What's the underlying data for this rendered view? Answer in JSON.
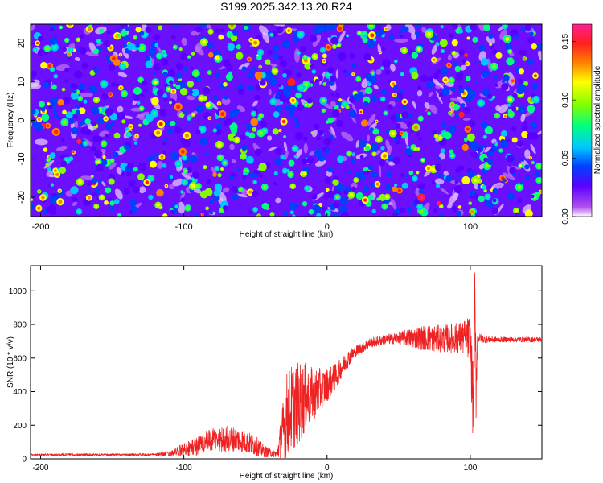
{
  "figure_title": "S199.2025.342.13.20.R24",
  "chart_data": [
    {
      "type": "heatmap",
      "title": "S199.2025.342.13.20.R24",
      "xlabel": "Height of straight line (km)",
      "ylabel": "Frequency (Hz)",
      "xlim": [
        -207,
        150
      ],
      "ylim": [
        -25,
        25
      ],
      "x_ticks": [
        -200,
        -100,
        0,
        100
      ],
      "x_tick_labels": [
        "-200",
        "-100",
        "0",
        "100"
      ],
      "y_ticks": [
        -20,
        -10,
        0,
        10,
        20
      ],
      "y_tick_labels": [
        "-20",
        "-10",
        "0",
        "10",
        "20"
      ],
      "value_range": [
        0,
        0.165
      ],
      "colorbar": {
        "label": "Normalized spectral amplitude",
        "ticks": [
          0,
          0.05,
          0.1,
          0.15
        ],
        "tick_labels": [
          "0.00",
          "0.05",
          "0.10",
          "0.15"
        ],
        "colors": [
          "#ffffff",
          "#b050f0",
          "#5a00ff",
          "#0040ff",
          "#00c8ff",
          "#00ff80",
          "#80ff00",
          "#ffff00",
          "#ff8000",
          "#ff2020",
          "#ff2090"
        ]
      },
      "description_of_values": "Speckled field of mostly low amplitude (0.02–0.06) with scattered peaks up to ~0.15"
    },
    {
      "type": "line",
      "xlabel": "Height of straight line (km)",
      "ylabel": "SNR (10 * v/v)",
      "xlim": [
        -207,
        150
      ],
      "ylim": [
        0,
        1150
      ],
      "x_ticks": [
        -200,
        -100,
        0,
        100
      ],
      "x_tick_labels": [
        "-200",
        "-100",
        "0",
        "100"
      ],
      "y_ticks": [
        0,
        200,
        400,
        600,
        800,
        1000
      ],
      "y_tick_labels": [
        "0",
        "200",
        "400",
        "600",
        "800",
        "1000"
      ],
      "series": [
        {
          "name": "SNR",
          "color": "#ee2222",
          "x": [
            -207,
            -180,
            -150,
            -120,
            -110,
            -100,
            -90,
            -80,
            -70,
            -60,
            -50,
            -45,
            -40,
            -35,
            -31,
            -28,
            -25,
            -22,
            -18,
            -15,
            -10,
            -5,
            0,
            5,
            10,
            15,
            20,
            30,
            40,
            50,
            60,
            70,
            80,
            90,
            95,
            100,
            102,
            103,
            104,
            105,
            107,
            110,
            120,
            130,
            140,
            150
          ],
          "y": [
            25,
            25,
            25,
            25,
            30,
            55,
            80,
            110,
            120,
            110,
            80,
            50,
            35,
            30,
            150,
            260,
            300,
            320,
            340,
            370,
            380,
            410,
            440,
            480,
            540,
            600,
            640,
            690,
            710,
            720,
            720,
            720,
            715,
            720,
            720,
            710,
            300,
            900,
            450,
            720,
            720,
            710,
            710,
            710,
            710,
            710
          ],
          "noise": [
            5,
            8,
            6,
            8,
            15,
            40,
            60,
            70,
            80,
            70,
            60,
            40,
            25,
            20,
            180,
            260,
            260,
            250,
            240,
            200,
            160,
            130,
            100,
            80,
            60,
            50,
            35,
            30,
            30,
            35,
            60,
            80,
            80,
            90,
            100,
            150,
            250,
            300,
            250,
            30,
            25,
            20,
            15,
            15,
            15,
            15
          ]
        }
      ]
    }
  ]
}
